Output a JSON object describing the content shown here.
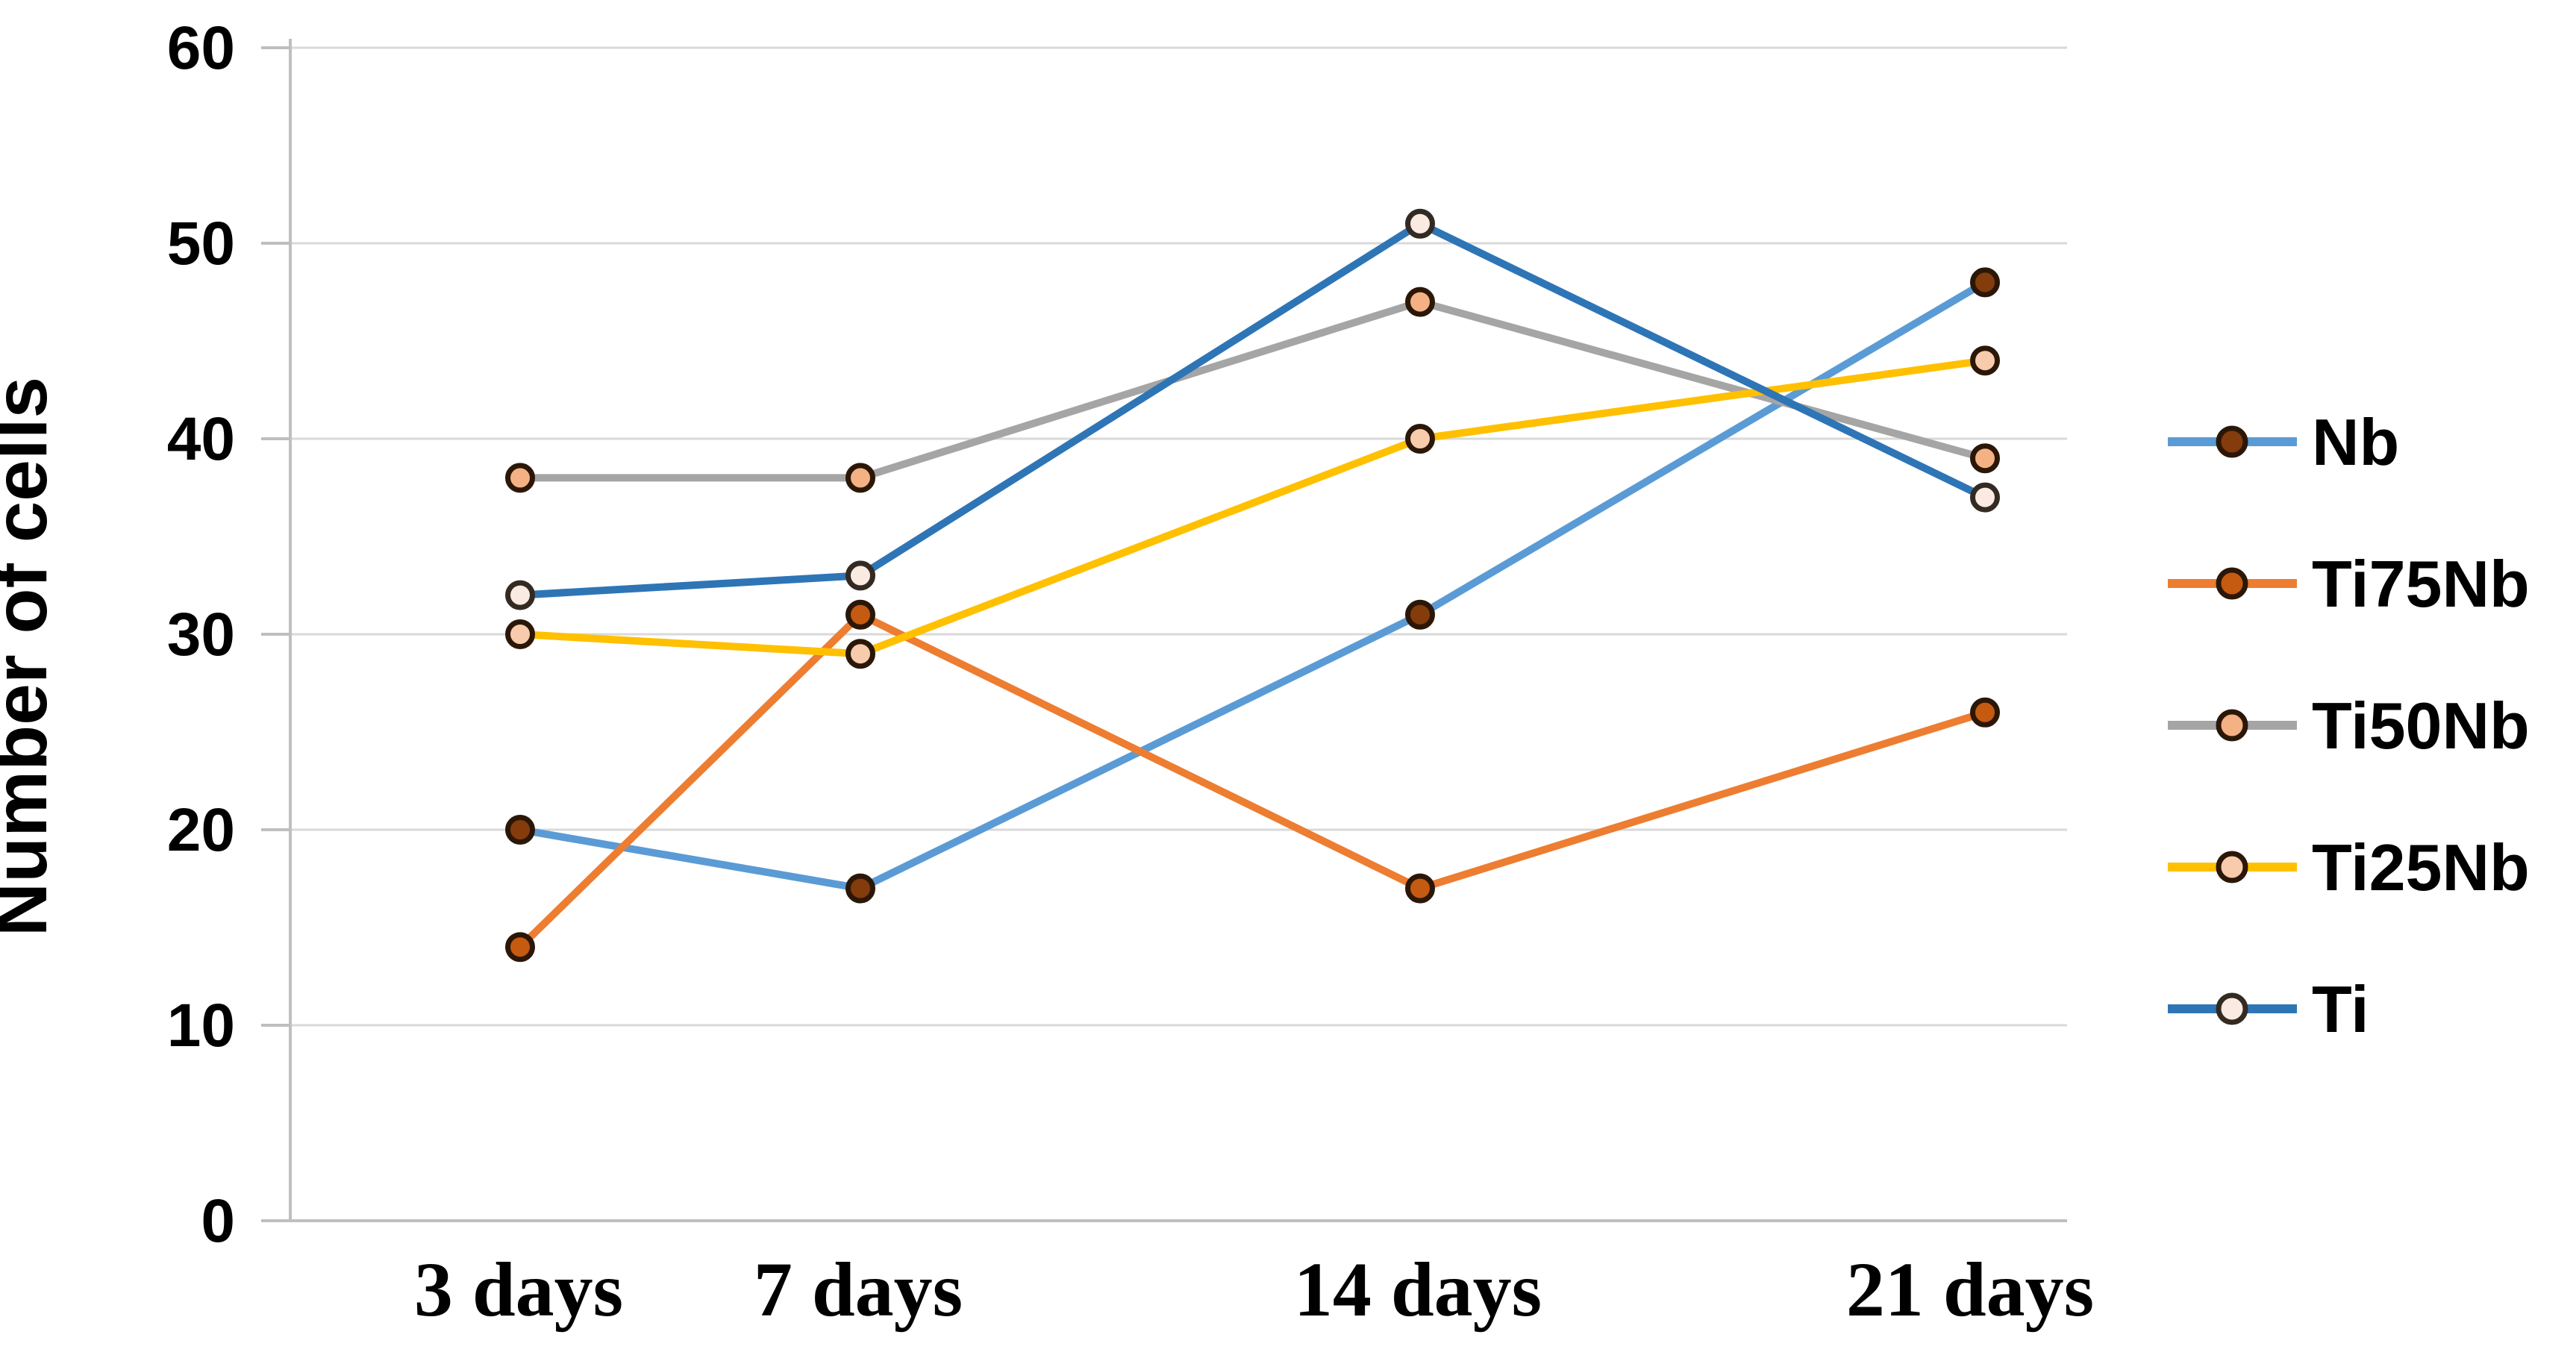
{
  "chart_data": {
    "type": "line",
    "title": "",
    "xlabel": "",
    "ylabel": "Number of cells",
    "categories": [
      "3 days",
      "7 days",
      "14 days",
      "21 days"
    ],
    "x_days": [
      3,
      7,
      14,
      21
    ],
    "ylim": [
      0,
      60
    ],
    "yticks": [
      0,
      10,
      20,
      30,
      40,
      50,
      60
    ],
    "grid": "horizontal",
    "legend_position": "right",
    "series": [
      {
        "name": "Nb",
        "line_color": "#5B9BD5",
        "marker_fill": "#843C0C",
        "marker_stroke": "#2B1708",
        "values": [
          20,
          17,
          31,
          48
        ]
      },
      {
        "name": "Ti75Nb",
        "line_color": "#ED7D31",
        "marker_fill": "#C55A11",
        "marker_stroke": "#2B1708",
        "values": [
          14,
          31,
          17,
          26
        ]
      },
      {
        "name": "Ti50Nb",
        "line_color": "#A5A5A5",
        "marker_fill": "#F4B183",
        "marker_stroke": "#2B1708",
        "values": [
          38,
          38,
          47,
          39
        ]
      },
      {
        "name": "Ti25Nb",
        "line_color": "#FFC000",
        "marker_fill": "#F8CBAD",
        "marker_stroke": "#2B1708",
        "values": [
          30,
          29,
          40,
          44
        ]
      },
      {
        "name": "Ti",
        "line_color": "#2E75B6",
        "marker_fill": "#FAEAE2",
        "marker_stroke": "#332A22",
        "values": [
          32,
          33,
          51,
          37
        ]
      }
    ],
    "grid_color": "#D9D9D9",
    "axis_color": "#BFBFBF",
    "text_color": "#000000",
    "background_color": "#FFFFFF"
  }
}
